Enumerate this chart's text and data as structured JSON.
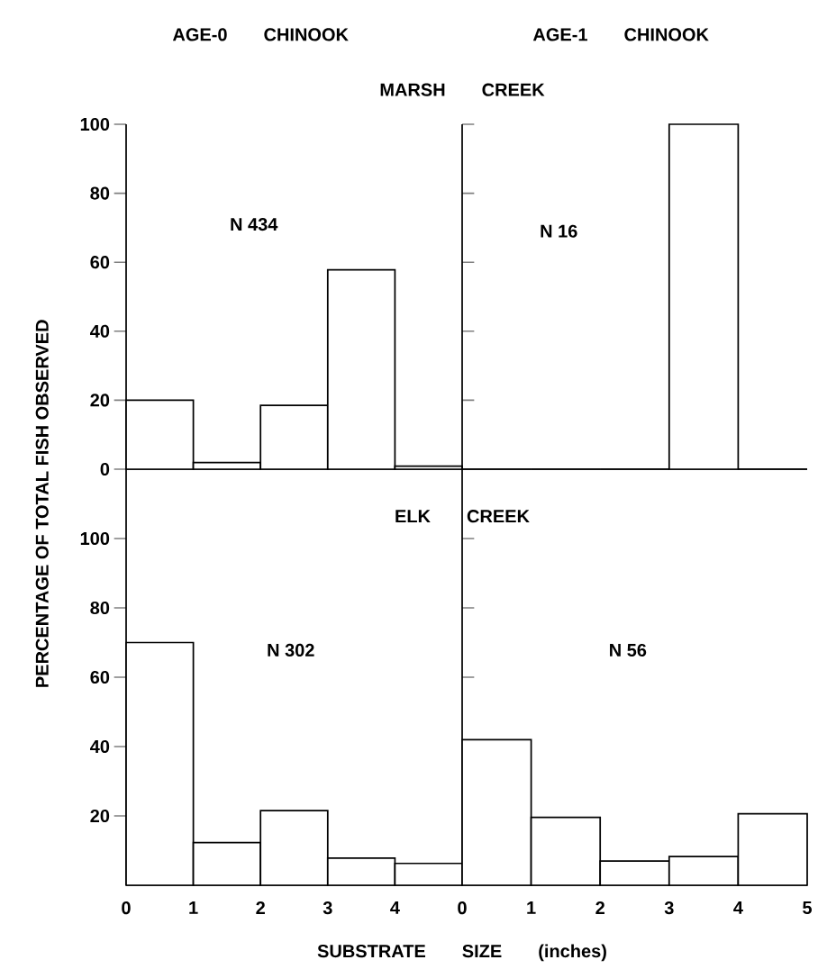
{
  "chart_data": [
    {
      "type": "histogram",
      "title": "AGE-0 CHINOOK",
      "subtitle": "MARSH CREEK",
      "ylabel": "PERCENTAGE OF TOTAL FISH OBSERVED",
      "annotations": [
        "N 434"
      ],
      "bins": [
        0,
        1,
        2,
        3,
        4,
        5
      ],
      "values": [
        20,
        1.9,
        18.5,
        57.8,
        0.9
      ],
      "xlim": [
        0,
        5
      ],
      "ylim": [
        0,
        100
      ],
      "yticks": [
        0,
        20,
        40,
        60,
        80,
        100
      ],
      "tick_labels": "y"
    },
    {
      "type": "histogram",
      "title": "AGE-1 CHINOOK",
      "annotations": [
        "N 16"
      ],
      "bins": [
        0,
        1,
        2,
        3,
        4,
        5
      ],
      "values": [
        0,
        0,
        0,
        100,
        0
      ],
      "xlim": [
        0,
        5
      ],
      "ylim": [
        0,
        100
      ],
      "yticks": [
        20,
        40,
        60,
        80,
        100
      ],
      "tick_labels": false
    },
    {
      "type": "histogram",
      "subtitle": "ELK CREEK",
      "xlabel": "SUBSTRATE SIZE (inches)",
      "annotations": [
        "N 302"
      ],
      "bins": [
        0,
        1,
        2,
        3,
        4,
        5
      ],
      "values": [
        70,
        12.3,
        21.5,
        7.8,
        6.3
      ],
      "xlim": [
        0,
        5
      ],
      "ylim": [
        0,
        120
      ],
      "xticks": [
        0,
        1,
        2,
        3,
        4
      ],
      "yticks": [
        20,
        40,
        60,
        80,
        100
      ]
    },
    {
      "type": "histogram",
      "annotations": [
        "N 56"
      ],
      "bins": [
        0,
        1,
        2,
        3,
        4,
        5
      ],
      "values": [
        42,
        19.6,
        7,
        8.3,
        20.6
      ],
      "xlim": [
        0,
        5
      ],
      "ylim": [
        0,
        120
      ],
      "xticks": [
        0,
        1,
        2,
        3,
        4,
        5
      ],
      "yticks": [
        20,
        40,
        60,
        80,
        100
      ],
      "tick_labels": "x"
    }
  ]
}
